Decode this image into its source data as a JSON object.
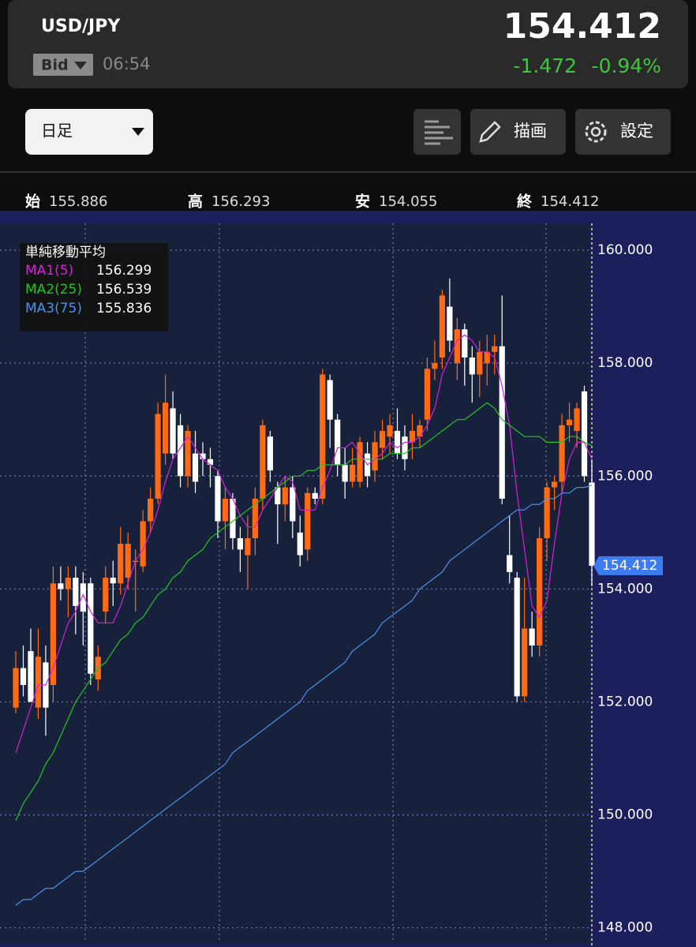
{
  "header": {
    "symbol": "USD/JPY",
    "price_type": "Bid",
    "time": "06:54",
    "price": "154.412",
    "change": "-1.472",
    "change_percent": "-0.94%"
  },
  "toolbar": {
    "period": "日足",
    "draw": "描画",
    "settings": "設定"
  },
  "ohlc": [
    {
      "label": "始",
      "value": "155.886"
    },
    {
      "label": "高",
      "value": "156.293"
    },
    {
      "label": "安",
      "value": "154.055"
    },
    {
      "label": "終",
      "value": "154.412"
    }
  ],
  "chart_data": {
    "type": "candlestick",
    "ylim": [
      147.66,
      160.7
    ],
    "yticks": [
      {
        "value": 160,
        "label": "160.000"
      },
      {
        "value": 158,
        "label": "158.000"
      },
      {
        "value": 156,
        "label": "156.000"
      },
      {
        "value": 154,
        "label": "154.000"
      },
      {
        "value": 152,
        "label": "152.000"
      },
      {
        "value": 150,
        "label": "150.000"
      },
      {
        "value": 148,
        "label": "148.000"
      }
    ],
    "grid": true,
    "up_color": "#ff6a13",
    "down_color": "#ffffff",
    "open": [
      151.9,
      152.6,
      152.9,
      151.9,
      152.7,
      152.3,
      154.1,
      154.0,
      154.2,
      154.1,
      154.1,
      152.4,
      153.6,
      154.2,
      154.1,
      154.2,
      154.5,
      154.4,
      155.2,
      155.6,
      156.4,
      157.2,
      156.9,
      156.0,
      156.4,
      156.4,
      156.3,
      156.0,
      155.2,
      155.6,
      154.9,
      154.6,
      154.9,
      155.6,
      156.7,
      155.8,
      155.5,
      155.8,
      155.0,
      154.7,
      155.7,
      155.6,
      157.7,
      157.0,
      156.2,
      155.9,
      155.9,
      156.4,
      156.1,
      156.5,
      156.7,
      156.8,
      156.7,
      156.6,
      156.7,
      157.0,
      157.9,
      158.1,
      159.0,
      158.0,
      158.6,
      158.1,
      157.8,
      158.0,
      158.2,
      158.3,
      154.6,
      154.2,
      152.1,
      153.3,
      153.0,
      154.9,
      155.8,
      155.9,
      156.9,
      156.8,
      157.5,
      155.886
    ],
    "high": [
      152.9,
      153.0,
      153.3,
      153.3,
      153.0,
      154.4,
      154.4,
      154.4,
      154.4,
      154.3,
      154.2,
      153.0,
      154.4,
      154.5,
      155.1,
      155.0,
      154.7,
      155.4,
      155.8,
      157.3,
      157.8,
      157.5,
      157.1,
      156.9,
      156.8,
      156.6,
      156.5,
      156.1,
      155.8,
      155.7,
      155.1,
      155.3,
      155.8,
      157.0,
      156.8,
      155.9,
      156.0,
      156.0,
      155.3,
      155.8,
      155.8,
      157.9,
      157.8,
      157.1,
      156.5,
      156.5,
      156.7,
      156.6,
      156.8,
      157.0,
      157.1,
      157.2,
      156.9,
      157.1,
      157.0,
      158.1,
      158.4,
      159.3,
      159.5,
      158.8,
      158.7,
      158.3,
      158.4,
      158.5,
      158.5,
      159.2,
      155.3,
      154.3,
      154.2,
      153.6,
      155.1,
      155.9,
      156.0,
      157.1,
      157.3,
      157.3,
      157.6,
      156.293
    ],
    "low": [
      151.8,
      152.1,
      152.0,
      151.7,
      151.4,
      152.0,
      153.8,
      153.5,
      153.2,
      153.0,
      152.3,
      152.2,
      153.4,
      153.7,
      153.9,
      154.0,
      153.6,
      154.3,
      155.0,
      155.5,
      156.2,
      156.3,
      155.8,
      155.8,
      155.7,
      156.0,
      155.8,
      154.9,
      154.7,
      154.7,
      154.3,
      154.0,
      154.6,
      155.4,
      155.9,
      154.8,
      155.2,
      154.9,
      154.4,
      154.5,
      155.5,
      155.5,
      156.5,
      156.0,
      155.6,
      155.8,
      155.8,
      155.8,
      155.9,
      156.3,
      156.4,
      156.3,
      156.1,
      156.3,
      156.5,
      156.8,
      157.7,
      157.9,
      158.2,
      157.7,
      157.6,
      157.3,
      157.4,
      157.6,
      157.8,
      155.5,
      154.1,
      152.0,
      152.0,
      152.8,
      152.8,
      154.5,
      155.4,
      155.7,
      156.6,
      156.5,
      155.9,
      154.055
    ],
    "close": [
      152.6,
      152.3,
      152.0,
      152.8,
      151.9,
      154.1,
      154.0,
      154.2,
      153.7,
      153.6,
      152.5,
      152.8,
      154.2,
      154.1,
      154.8,
      154.8,
      154.5,
      155.2,
      155.6,
      157.1,
      157.3,
      156.4,
      156.0,
      156.8,
      155.9,
      156.3,
      156.2,
      155.2,
      155.6,
      154.9,
      154.7,
      154.9,
      155.6,
      156.9,
      156.1,
      155.5,
      155.8,
      155.2,
      154.6,
      155.7,
      155.6,
      157.8,
      157.0,
      156.2,
      155.9,
      156.2,
      156.6,
      156.0,
      156.6,
      156.8,
      156.9,
      156.4,
      156.3,
      156.8,
      156.9,
      157.9,
      158.0,
      159.2,
      158.4,
      158.6,
      158.1,
      157.8,
      158.2,
      158.2,
      158.3,
      155.6,
      154.3,
      152.1,
      153.3,
      153.0,
      154.9,
      155.8,
      155.9,
      156.9,
      157.0,
      157.2,
      156.0,
      154.412
    ],
    "legend_title": "単純移動平均",
    "series": [
      {
        "name": "MA1(5)",
        "color": "#d61fd6",
        "last": 156.299,
        "values": [
          151.1,
          151.5,
          151.9,
          152.3,
          152.3,
          152.6,
          153.0,
          153.4,
          153.6,
          153.9,
          153.6,
          153.4,
          153.4,
          153.4,
          153.7,
          154.1,
          154.5,
          154.7,
          155.0,
          155.4,
          155.9,
          156.3,
          156.5,
          156.7,
          156.5,
          156.3,
          156.2,
          156.1,
          155.8,
          155.6,
          155.3,
          155.1,
          155.1,
          155.4,
          155.6,
          155.8,
          156.0,
          155.9,
          155.4,
          155.4,
          155.4,
          155.8,
          156.1,
          156.5,
          156.5,
          156.6,
          156.4,
          156.2,
          156.3,
          156.4,
          156.6,
          156.5,
          156.6,
          156.6,
          156.7,
          156.9,
          157.2,
          157.8,
          158.1,
          158.4,
          158.5,
          158.4,
          158.2,
          158.2,
          158.1,
          157.6,
          156.9,
          155.7,
          154.7,
          153.7,
          153.5,
          153.8,
          154.8,
          155.7,
          156.3,
          156.6,
          156.6,
          156.299
        ]
      },
      {
        "name": "MA2(25)",
        "color": "#22c422",
        "last": 156.539,
        "values": [
          149.9,
          150.2,
          150.4,
          150.6,
          150.9,
          151.1,
          151.4,
          151.7,
          152.0,
          152.2,
          152.4,
          152.6,
          152.7,
          152.9,
          153.1,
          153.2,
          153.4,
          153.5,
          153.7,
          153.9,
          154.0,
          154.2,
          154.3,
          154.5,
          154.6,
          154.7,
          154.9,
          155.0,
          155.1,
          155.2,
          155.3,
          155.4,
          155.5,
          155.6,
          155.7,
          155.8,
          155.9,
          156.0,
          156.0,
          156.1,
          156.1,
          156.2,
          156.2,
          156.2,
          156.2,
          156.3,
          156.3,
          156.3,
          156.3,
          156.3,
          156.4,
          156.4,
          156.4,
          156.5,
          156.5,
          156.6,
          156.7,
          156.8,
          156.9,
          157.0,
          157.0,
          157.1,
          157.2,
          157.3,
          157.2,
          157.0,
          156.9,
          156.8,
          156.7,
          156.7,
          156.7,
          156.6,
          156.6,
          156.6,
          156.7,
          156.7,
          156.6,
          156.539
        ]
      },
      {
        "name": "MA3(75)",
        "color": "#4f8fe8",
        "last": 155.836,
        "values": [
          148.4,
          148.5,
          148.5,
          148.6,
          148.7,
          148.7,
          148.8,
          148.9,
          149.0,
          149.0,
          149.1,
          149.2,
          149.3,
          149.4,
          149.5,
          149.6,
          149.7,
          149.8,
          149.9,
          150.0,
          150.1,
          150.2,
          150.3,
          150.4,
          150.5,
          150.6,
          150.7,
          150.8,
          150.9,
          151.1,
          151.2,
          151.3,
          151.4,
          151.5,
          151.6,
          151.7,
          151.8,
          151.9,
          152.0,
          152.2,
          152.3,
          152.4,
          152.5,
          152.6,
          152.7,
          152.9,
          153.0,
          153.1,
          153.2,
          153.4,
          153.5,
          153.6,
          153.7,
          153.8,
          154.0,
          154.1,
          154.2,
          154.3,
          154.5,
          154.6,
          154.7,
          154.8,
          154.9,
          155.0,
          155.1,
          155.2,
          155.3,
          155.4,
          155.4,
          155.5,
          155.5,
          155.6,
          155.6,
          155.7,
          155.7,
          155.8,
          155.8,
          155.836
        ]
      }
    ],
    "last_price": 154.412,
    "last_price_color": "#3d7bf0"
  }
}
